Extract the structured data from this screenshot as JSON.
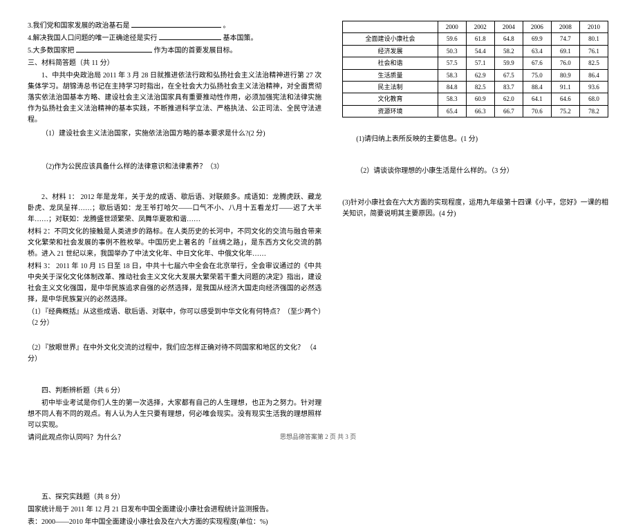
{
  "left": {
    "q3_prefix": "3.我们党和国家发展的政治基石是",
    "q3_suffix": "。",
    "q4_prefix": "4.解决我国人口问题的唯一正确途径是实行",
    "q4_suffix": "基本国策。",
    "q5_prefix": "5.大多数国家把",
    "q5_suffix": "作为本国的首要发展目标。",
    "sec3_title": "三、材料简答题（共 11 分）",
    "m1_p1": "1、中共中央政治局 2011 年 3 月 28 日就推进依法行政和弘扬社会主义法治精神进行第 27 次集体学习。胡锦涛总书记在主持学习时指出，在全社会大力弘扬社会主义法治精神，对全面贯彻落实依法治国基本方略、建设社会主义法治国家具有重要推动性作用，必须加强宪法和法律实施作为弘扬社会主义法治精神的基本实践，不断推进科学立法、严格执法、公正司法、全民守法进程。",
    "m1_q1": "（1）建设社会主义法治国家，实施依法治国方略的基本要求是什么?(2 分)",
    "m1_q2": "（2)作为公民应该具备什么样的法律意识和法律素养？（3）",
    "m2_p1": "2、材料 1： 2012 年是龙年，关于龙的成语、歇后语、对联颇多。成语如：龙腾虎跃、藏龙卧虎、龙凤呈祥……；歇后语如：龙王爷打哈欠——口气不小、八月十五看龙灯——迟了大半年……；对联如：龙腾盛世颂繁荣、凤舞华夏歌和谐……",
    "m2_p2": "材料 2：不同文化的接触是人类进步的路标。在人类历史的长河中，不同文化的交流与融合带来文化繁荣和社会发展的事例不胜枚举。中国历史上著名的「丝绸之路」，是东西方文化交流的鹊桥。进入 21 世纪以来，我国举办了中法文化年、中日文化年、中俄文化年……",
    "m2_p3": "材料 3： 2011 年 10 月 15 日至 18 日，中共十七届六中全会在北京举行，全会审议通过的《中共中央关于深化文化体制改革、推动社会主义文化大发展大繁荣若干重大问题的决定》指出，建设社会主义文化强国，是中华民族追求自强的必然选择，是我国从经济大国走向经济强国的必然选择，是中华民族复兴的必然选择。",
    "m2_q1": "（1）『经典概括』从这些成语、歇后语、对联中，你可以感受到中华文化有何特点？（至少两个）（2 分）",
    "m2_q2": "（2）『放眼世界』在中外文化交流的过程中，我们应怎样正确对待不同国家和地区的文化？ （4 分）",
    "sec4_title": "四、判断辨析题（共 6 分）",
    "s4_p1": "初中毕业考试是你们人生的第一次选择，大家都有自己的人生理想，也正为之努力。针对理想不同人有不同的观点。有人认为人生只要有理想，何必唯会现实。没有现实生活我的理想照样可以实现。",
    "s4_p2": "请问此观点你认同吗？为什么？",
    "sec5_title": "五、探究实践题（共 8 分）",
    "s5_p1": "国家统计局于 2011 年 12 月 21 日发布中国全面建设小康社会进程统计监测报告。",
    "s5_p2": "表：2000——2010 年中国全面建设小康社会及在六大方面的实现程度(单位：%)"
  },
  "right": {
    "table": {
      "years": [
        "2000",
        "2002",
        "2004",
        "2006",
        "2008",
        "2010"
      ],
      "rows": [
        {
          "label": "全面建设小康社会",
          "vals": [
            "59.6",
            "61.8",
            "64.8",
            "69.9",
            "74.7",
            "80.1"
          ]
        },
        {
          "label": "经济发展",
          "vals": [
            "50.3",
            "54.4",
            "58.2",
            "63.4",
            "69.1",
            "76.1"
          ]
        },
        {
          "label": "社会和谐",
          "vals": [
            "57.5",
            "57.1",
            "59.9",
            "67.6",
            "76.0",
            "82.5"
          ]
        },
        {
          "label": "生活质量",
          "vals": [
            "58.3",
            "62.9",
            "67.5",
            "75.0",
            "80.9",
            "86.4"
          ]
        },
        {
          "label": "民主法制",
          "vals": [
            "84.8",
            "82.5",
            "83.7",
            "88.4",
            "91.1",
            "93.6"
          ]
        },
        {
          "label": "文化教育",
          "vals": [
            "58.3",
            "60.9",
            "62.0",
            "64.1",
            "64.6",
            "68.0"
          ]
        },
        {
          "label": "资源环境",
          "vals": [
            "65.4",
            "66.3",
            "66.7",
            "70.6",
            "75.2",
            "78.2"
          ]
        }
      ],
      "border_color": "#000000",
      "font_size": 9,
      "background_color": "#ffffff"
    },
    "q1": "(1)请归纳上表所反映的主要信息。(1 分)",
    "q2": "（2）请谈谈你理想的小康生活是什么样的。（3 分）",
    "q3": "(3)针对小康社会在六大方面的实现程度，运用九年级第十四课《小平，您好》一课的相关知识，简要说明其主要原因。(4 分)"
  },
  "footer": "思想品德答案第 2 页 共 3 页",
  "blanks": {
    "w3": 130,
    "w4": 90,
    "w5": 110
  }
}
